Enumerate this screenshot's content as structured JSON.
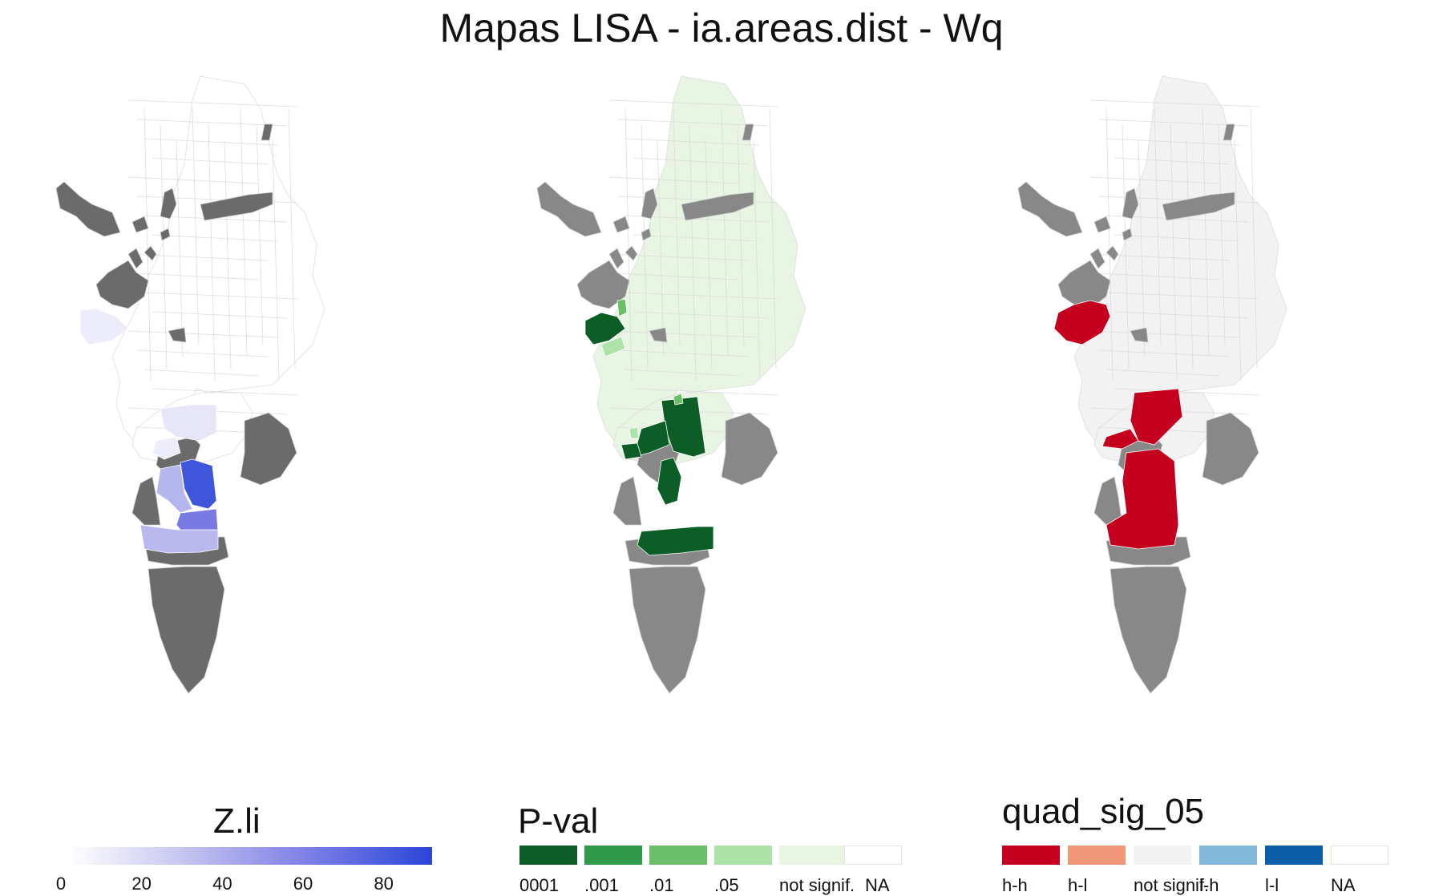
{
  "title": "Mapas LISA - ia.areas.dist - Wq",
  "panels": [
    {
      "id": "zli",
      "legend_title": "Z.li"
    },
    {
      "id": "pval",
      "legend_title": "P-val"
    },
    {
      "id": "quad",
      "legend_title": "quad_sig_05"
    }
  ],
  "zli_legend": {
    "ticks": [
      "0",
      "20",
      "40",
      "60",
      "80"
    ],
    "range": [
      0,
      90
    ],
    "colors": [
      "#ffffff",
      "#c8c8f0",
      "#8a8ae8",
      "#2b45d8"
    ]
  },
  "pval_legend": [
    {
      "label": "0001",
      "color": "#0c5e26"
    },
    {
      "label": ".001",
      "color": "#2f9a4a"
    },
    {
      "label": ".01",
      "color": "#6bbf6b"
    },
    {
      "label": ".05",
      "color": "#ade3a8"
    },
    {
      "label": "not signif.",
      "color": "#e8f5e3"
    },
    {
      "label": "NA",
      "color": "#ffffff"
    }
  ],
  "quad_legend": [
    {
      "label": "h-h",
      "color": "#c5001f"
    },
    {
      "label": "h-l",
      "color": "#f0977a"
    },
    {
      "label": "not signif.",
      "color": "#f2f2f2"
    },
    {
      "label": "l-h",
      "color": "#82b9da"
    },
    {
      "label": "l-l",
      "color": "#0c5ea8"
    },
    {
      "label": "NA",
      "color": "#ffffff"
    }
  ],
  "colors": {
    "missing": "#6b6b6b",
    "missing_light": "#888888",
    "zli_base": "#ffffff",
    "pval_base": "#e8f5e3",
    "quad_base": "#f2f2f2",
    "border": "#dcdcdc"
  }
}
